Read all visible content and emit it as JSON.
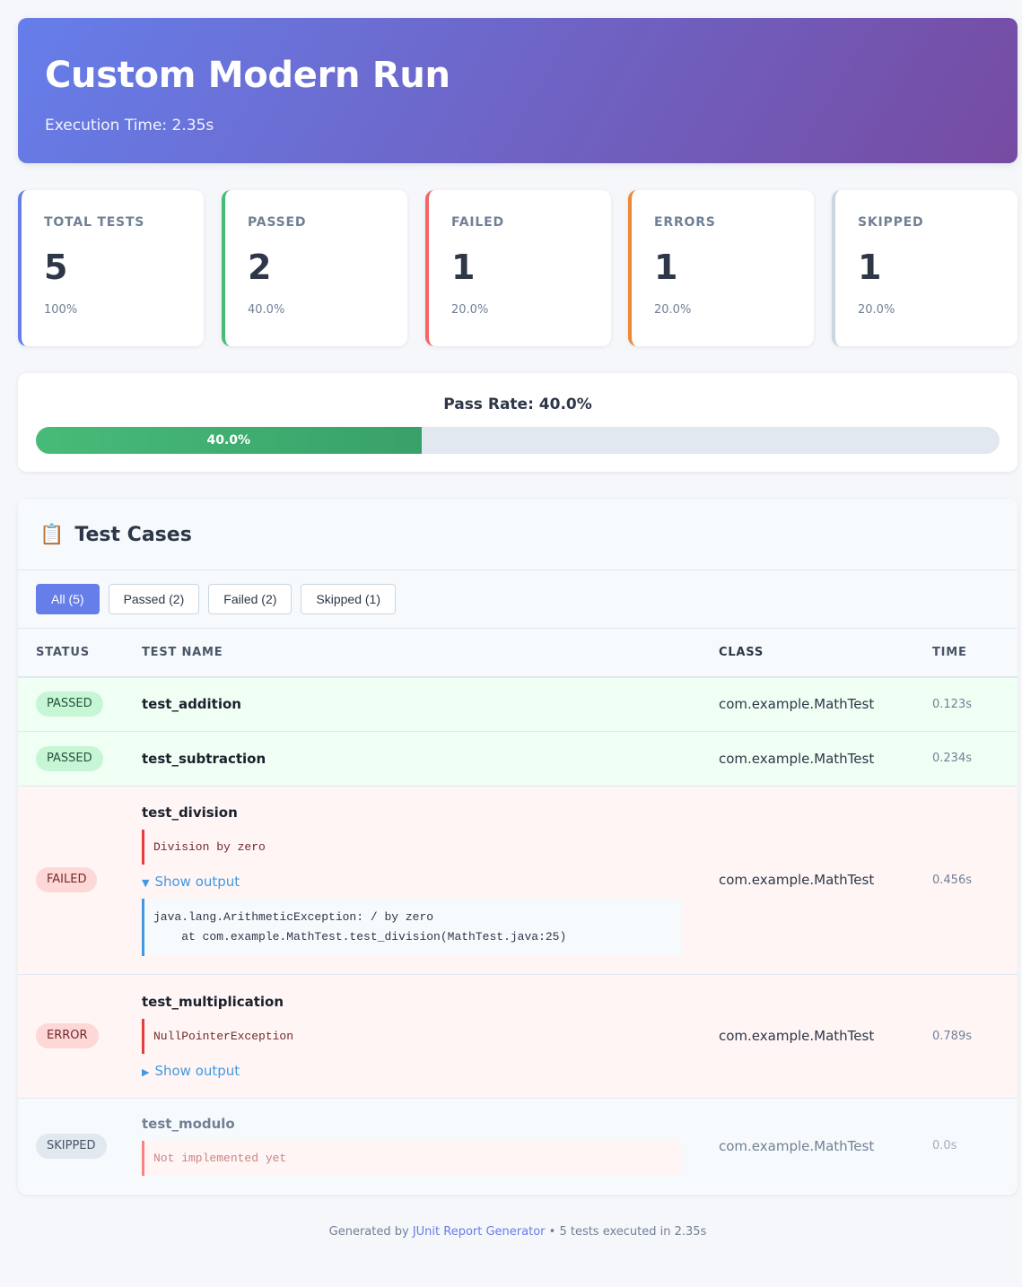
{
  "header": {
    "title": "Custom Modern Run",
    "exec_label": "Execution Time: 2.35s"
  },
  "stats": [
    {
      "label": "TOTAL TESTS",
      "value": "5",
      "pct": "100%",
      "color": "#667eea"
    },
    {
      "label": "PASSED",
      "value": "2",
      "pct": "40.0%",
      "color": "#48bb78"
    },
    {
      "label": "FAILED",
      "value": "1",
      "pct": "20.0%",
      "color": "#f56565"
    },
    {
      "label": "ERRORS",
      "value": "1",
      "pct": "20.0%",
      "color": "#ed8936"
    },
    {
      "label": "SKIPPED",
      "value": "1",
      "pct": "20.0%",
      "color": "#cbd5e0"
    }
  ],
  "pass_rate": {
    "title": "Pass Rate: 40.0%",
    "bar_label": "40.0%",
    "fraction": 0.4
  },
  "cases": {
    "icon": "clipboard-icon",
    "clip_glyph": "📋",
    "title": "Test Cases",
    "filters": [
      "All (5)",
      "Passed (2)",
      "Failed (2)",
      "Skipped (1)"
    ],
    "columns": [
      "STATUS",
      "TEST NAME",
      "CLASS",
      "TIME"
    ],
    "rows": [
      {
        "status": "PASSED",
        "name": "test_addition",
        "class": "com.example.MathTest",
        "time": "0.123s"
      },
      {
        "status": "PASSED",
        "name": "test_subtraction",
        "class": "com.example.MathTest",
        "time": "0.234s"
      },
      {
        "status": "FAILED",
        "name": "test_division",
        "message": "Division by zero",
        "toggle": "Show output",
        "output": "java.lang.ArithmeticException: / by zero\n    at com.example.MathTest.test_division(MathTest.java:25)",
        "class": "com.example.MathTest",
        "time": "0.456s"
      },
      {
        "status": "ERROR",
        "name": "test_multiplication",
        "message": "NullPointerException",
        "toggle": "Show output",
        "class": "com.example.MathTest",
        "time": "0.789s"
      },
      {
        "status": "SKIPPED",
        "name": "test_modulo",
        "message": "Not implemented yet",
        "class": "com.example.MathTest",
        "time": "0.0s"
      }
    ]
  },
  "footer": {
    "prefix": "Generated by",
    "link": "JUnit Report Generator",
    "suffix": "• 5 tests executed in 2.35s"
  }
}
